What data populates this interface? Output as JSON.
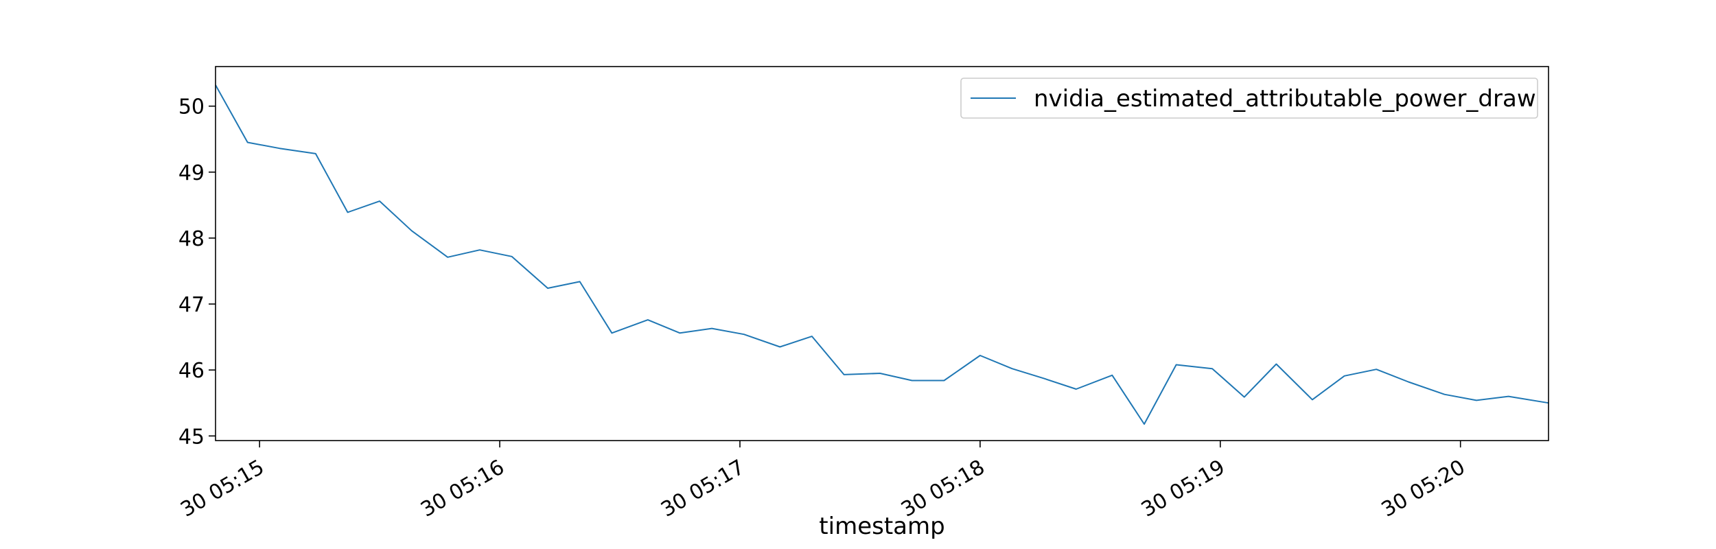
{
  "chart_data": {
    "type": "line",
    "xlabel": "timestamp",
    "ylabel": "",
    "x_ticks": [
      "30 05:15",
      "30 05:16",
      "30 05:17",
      "30 05:18",
      "30 05:19",
      "30 05:20"
    ],
    "y_ticks": [
      "45",
      "46",
      "47",
      "48",
      "49",
      "50"
    ],
    "ylim": [
      44.93,
      50.6
    ],
    "xlim": [
      "05:14:49",
      "05:20:22"
    ],
    "legend": {
      "position": "top-right"
    },
    "grid": false,
    "series": [
      {
        "name": "nvidia_estimated_attributable_power_draw",
        "color": "#1f77b4",
        "x": [
          "05:14:49",
          "05:14:57",
          "05:15:05",
          "05:15:14",
          "05:15:22",
          "05:15:30",
          "05:15:38",
          "05:15:47",
          "05:15:55",
          "05:16:03",
          "05:16:12",
          "05:16:20",
          "05:16:28",
          "05:16:37",
          "05:16:45",
          "05:16:53",
          "05:17:01",
          "05:17:10",
          "05:17:18",
          "05:17:26",
          "05:17:35",
          "05:17:43",
          "05:17:51",
          "05:18:00",
          "05:18:08",
          "05:18:16",
          "05:18:24",
          "05:18:33",
          "05:18:41",
          "05:18:49",
          "05:18:58",
          "05:19:06",
          "05:19:14",
          "05:19:23",
          "05:19:31",
          "05:19:39",
          "05:19:47",
          "05:19:56",
          "05:20:04",
          "05:20:12",
          "05:20:22"
        ],
        "y": [
          50.32,
          49.45,
          49.36,
          49.28,
          48.39,
          48.56,
          48.11,
          47.71,
          47.82,
          47.72,
          47.24,
          47.34,
          46.56,
          46.76,
          46.56,
          46.63,
          46.54,
          46.35,
          46.51,
          45.93,
          45.95,
          45.84,
          45.84,
          46.22,
          46.02,
          45.87,
          45.71,
          45.92,
          45.18,
          46.08,
          46.02,
          45.59,
          46.09,
          45.55,
          45.91,
          46.01,
          45.82,
          45.63,
          45.54,
          45.6,
          45.5
        ]
      }
    ]
  }
}
